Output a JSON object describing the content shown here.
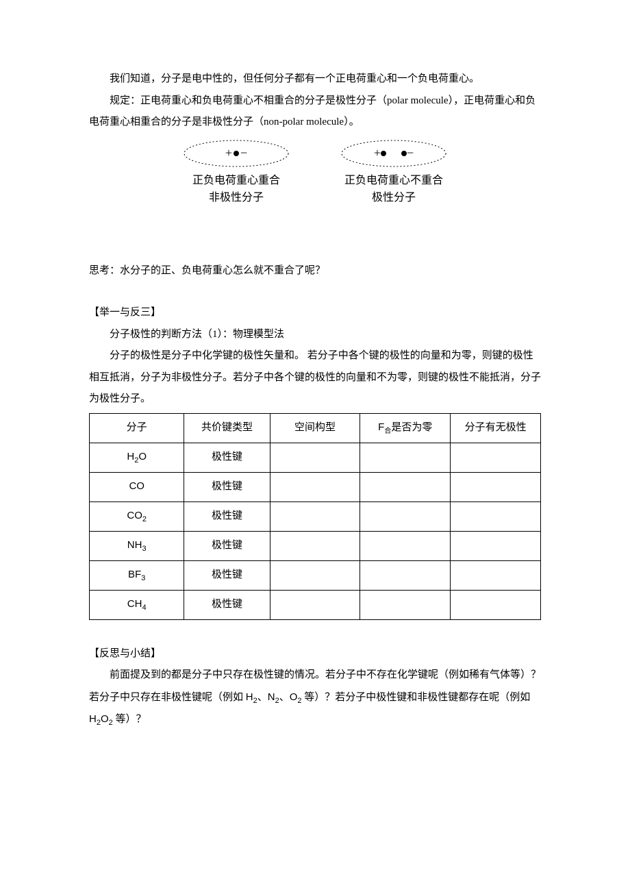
{
  "intro": {
    "p1": "我们知道，分子是电中性的，但任何分子都有一个正电荷重心和一个负电荷重心。",
    "p2_prefix": "规定：正电荷重心和负电荷重心不相重合的分子是极性分子（",
    "p2_polar": "polar molecule",
    "p2_mid": "），正电荷重心和负电荷重心相重合的分子是非极性分子（",
    "p2_nonpolar": "non-polar molecule",
    "p2_suffix": "）。"
  },
  "diagram": {
    "left": {
      "line1": "正负电荷重心重合",
      "line2": "非极性分子"
    },
    "right": {
      "line1": "正负电荷重心不重合",
      "line2": "极性分子"
    },
    "plus": "+",
    "minus": "−"
  },
  "question": "思考：水分子的正、负电荷重心怎么就不重合了呢？",
  "section1": {
    "heading": "【举一与反三】",
    "sub": "分子极性的判断方法（1）：物理模型法",
    "body": "分子的极性是分子中化学键的极性矢量和。 若分子中各个键的极性的向量和为零，则键的极性相互抵消，分子为非极性分子。若分子中各个键的极性的向量和不为零，则键的极性不能抵消，分子为极性分子。"
  },
  "table": {
    "headers": [
      "分子",
      "共价键类型",
      "空间构型",
      "F",
      "是否为零",
      "分子有无极性"
    ],
    "f_sub": "合",
    "rows": [
      {
        "mol": "H",
        "sub": "2",
        "tail": "O",
        "bond": "极性键"
      },
      {
        "mol": "CO",
        "sub": "",
        "tail": "",
        "bond": "极性键"
      },
      {
        "mol": "CO",
        "sub": "2",
        "tail": "",
        "bond": "极性键"
      },
      {
        "mol": "NH",
        "sub": "3",
        "tail": "",
        "bond": "极性键"
      },
      {
        "mol": "BF",
        "sub": "3",
        "tail": "",
        "bond": "极性键"
      },
      {
        "mol": "CH",
        "sub": "4",
        "tail": "",
        "bond": "极性键"
      }
    ]
  },
  "section2": {
    "heading": "【反思与小结】",
    "body_a": "前面提及到的都是分子中只存在极性键的情况。若分子中不存在化学键呢（例如稀有气体等）？若分子中只存在非极性键呢（例如 ",
    "h2": "H",
    "h2s": "2",
    "sep1": "、",
    "n2": "N",
    "n2s": "2",
    "sep2": "、",
    "o2": "O",
    "o2s": "2",
    "body_b": " 等）？若分子中极性键和非极性键都存在呢（例如 ",
    "h2o2a": "H",
    "h2o2as": "2",
    "h2o2b": "O",
    "h2o2bs": "2",
    "body_c": " 等）？"
  }
}
